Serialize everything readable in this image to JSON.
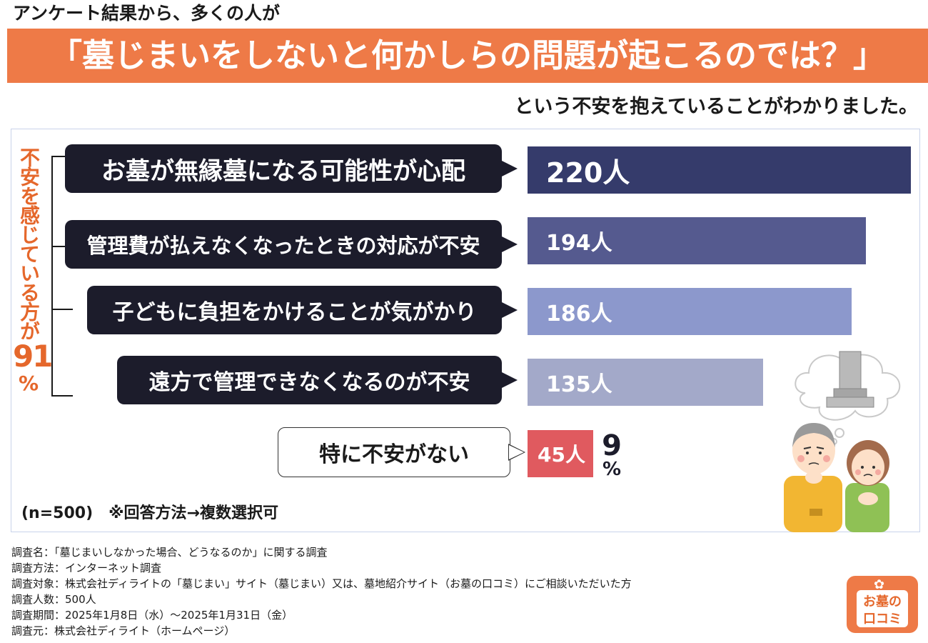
{
  "header": {
    "lead": "アンケート結果から、多くの人が",
    "headline": "「墓じまいをしないと何かしらの問題が起こるのでは？」",
    "subline": "という不安を抱えていることがわかりました。"
  },
  "side_label": {
    "text": "不安を感じている方が",
    "percent_value": "91",
    "percent_unit": "%"
  },
  "chart_data": {
    "type": "bar",
    "orientation": "horizontal",
    "title": "",
    "categories": [
      "お墓が無縁墓になる可能性が心配",
      "管理費が払えなくなったときの対応が不安",
      "子どもに負担をかけることが気がかり",
      "遠方で管理できなくなるのが不安",
      "特に不安がない"
    ],
    "values": [
      220,
      194,
      186,
      135,
      45
    ],
    "value_labels": [
      "220人",
      "194人",
      "186人",
      "135人",
      "45人"
    ],
    "unit": "人",
    "colors": [
      "#353b6b",
      "#555a8f",
      "#8c98cc",
      "#a3a9c9",
      "#e05a5f"
    ],
    "xlim": [
      0,
      220
    ],
    "extra_label": {
      "value": "9",
      "unit": "%"
    }
  },
  "note": "(n=500)　※回答方法→複数選択可",
  "survey_meta": [
    "調査名：「墓じまいしなかった場合、どうなるのか」に関する調査",
    "調査方法：インターネット調査",
    "調査対象：株式会社ディライトの「墓じまい」サイト（墓じまい）又は、墓地紹介サイト（お墓の口コミ）にご相談いただいた方",
    "調査人数：500人",
    "調査期間：2025年1月8日（水）〜2025年1月31日（金）",
    "調査元：株式会社ディライト（ホームページ）"
  ],
  "logo": {
    "line1": "お墓の",
    "line2": "口コミ"
  },
  "colors": {
    "accent": "#ee7a47",
    "side_label": "#e5672b",
    "bubble": "#1c1c2b"
  }
}
